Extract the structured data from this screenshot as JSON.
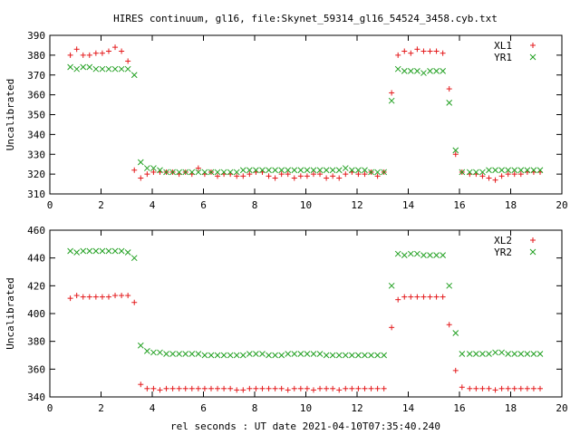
{
  "title": "HIRES continuum, gl16, file:Skynet_59314_gl16_54524_3458.cyb.txt",
  "colors": {
    "XL": "#e41a1c",
    "YR": "#22a022"
  },
  "chart_data": [
    {
      "type": "scatter",
      "ylabel": "Uncalibrated",
      "xlabel": "",
      "xlim": [
        0,
        20
      ],
      "ylim": [
        310,
        390
      ],
      "xticks": [
        0,
        2,
        4,
        6,
        8,
        10,
        12,
        14,
        16,
        18,
        20
      ],
      "yticks": [
        310,
        320,
        330,
        340,
        350,
        360,
        370,
        380,
        390
      ],
      "grid": false,
      "legend": "top-right",
      "series": [
        {
          "name": "XL1",
          "marker": "plus",
          "x": [
            0.8,
            1.05,
            1.3,
            1.55,
            1.8,
            2.05,
            2.3,
            2.55,
            2.8,
            3.05,
            3.3,
            3.55,
            3.8,
            4.05,
            4.3,
            4.55,
            4.8,
            5.05,
            5.3,
            5.55,
            5.8,
            6.05,
            6.3,
            6.55,
            6.8,
            7.05,
            7.3,
            7.55,
            7.8,
            8.05,
            8.3,
            8.55,
            8.8,
            9.05,
            9.3,
            9.55,
            9.8,
            10.05,
            10.3,
            10.55,
            10.8,
            11.05,
            11.3,
            11.55,
            11.8,
            12.05,
            12.3,
            12.55,
            12.8,
            13.05,
            13.35,
            13.6,
            13.85,
            14.1,
            14.35,
            14.6,
            14.85,
            15.1,
            15.35,
            15.6,
            15.85,
            16.1,
            16.4,
            16.65,
            16.9,
            17.15,
            17.4,
            17.65,
            17.9,
            18.15,
            18.4,
            18.65,
            18.9,
            19.15
          ],
          "y": [
            380,
            383,
            380,
            380,
            381,
            381,
            382,
            384,
            382,
            377,
            322,
            318,
            320,
            321,
            321,
            321,
            321,
            320,
            321,
            320,
            323,
            320,
            321,
            319,
            320,
            320,
            319,
            319,
            320,
            321,
            321,
            319,
            318,
            320,
            320,
            318,
            319,
            319,
            320,
            320,
            318,
            319,
            318,
            320,
            321,
            320,
            320,
            321,
            319,
            321,
            361,
            380,
            382,
            381,
            383,
            382,
            382,
            382,
            381,
            363,
            330,
            321,
            320,
            320,
            319,
            318,
            317,
            319,
            320,
            320,
            320,
            321,
            321,
            321
          ]
        },
        {
          "name": "YR1",
          "marker": "cross",
          "x": [
            0.8,
            1.05,
            1.3,
            1.55,
            1.8,
            2.05,
            2.3,
            2.55,
            2.8,
            3.05,
            3.3,
            3.55,
            3.8,
            4.05,
            4.3,
            4.55,
            4.8,
            5.05,
            5.3,
            5.55,
            5.8,
            6.05,
            6.3,
            6.55,
            6.8,
            7.05,
            7.3,
            7.55,
            7.8,
            8.05,
            8.3,
            8.55,
            8.8,
            9.05,
            9.3,
            9.55,
            9.8,
            10.05,
            10.3,
            10.55,
            10.8,
            11.05,
            11.3,
            11.55,
            11.8,
            12.05,
            12.3,
            12.55,
            12.8,
            13.05,
            13.35,
            13.6,
            13.85,
            14.1,
            14.35,
            14.6,
            14.85,
            15.1,
            15.35,
            15.6,
            15.85,
            16.1,
            16.4,
            16.65,
            16.9,
            17.15,
            17.4,
            17.65,
            17.9,
            18.15,
            18.4,
            18.65,
            18.9,
            19.15
          ],
          "y": [
            374,
            373,
            374,
            374,
            373,
            373,
            373,
            373,
            373,
            373,
            370,
            326,
            323,
            323,
            322,
            321,
            321,
            321,
            321,
            321,
            321,
            321,
            321,
            321,
            321,
            321,
            321,
            322,
            322,
            322,
            322,
            322,
            322,
            322,
            322,
            322,
            322,
            322,
            322,
            322,
            322,
            322,
            322,
            323,
            322,
            322,
            322,
            321,
            321,
            321,
            357,
            373,
            372,
            372,
            372,
            371,
            372,
            372,
            372,
            356,
            332,
            321,
            321,
            321,
            321,
            322,
            322,
            322,
            322,
            322,
            322,
            322,
            322,
            322
          ]
        }
      ]
    },
    {
      "type": "scatter",
      "ylabel": "Uncalibrated",
      "xlabel": "rel seconds : UT date 2021-04-10T07:35:40.240",
      "xlim": [
        0,
        20
      ],
      "ylim": [
        340,
        460
      ],
      "xticks": [
        0,
        2,
        4,
        6,
        8,
        10,
        12,
        14,
        16,
        18,
        20
      ],
      "yticks": [
        340,
        360,
        380,
        400,
        420,
        440,
        460
      ],
      "grid": false,
      "legend": "top-right",
      "series": [
        {
          "name": "XL2",
          "marker": "plus",
          "x": [
            0.8,
            1.05,
            1.3,
            1.55,
            1.8,
            2.05,
            2.3,
            2.55,
            2.8,
            3.05,
            3.3,
            3.55,
            3.8,
            4.05,
            4.3,
            4.55,
            4.8,
            5.05,
            5.3,
            5.55,
            5.8,
            6.05,
            6.3,
            6.55,
            6.8,
            7.05,
            7.3,
            7.55,
            7.8,
            8.05,
            8.3,
            8.55,
            8.8,
            9.05,
            9.3,
            9.55,
            9.8,
            10.05,
            10.3,
            10.55,
            10.8,
            11.05,
            11.3,
            11.55,
            11.8,
            12.05,
            12.3,
            12.55,
            12.8,
            13.05,
            13.35,
            13.6,
            13.85,
            14.1,
            14.35,
            14.6,
            14.85,
            15.1,
            15.35,
            15.6,
            15.85,
            16.1,
            16.4,
            16.65,
            16.9,
            17.15,
            17.4,
            17.65,
            17.9,
            18.15,
            18.4,
            18.65,
            18.9,
            19.15
          ],
          "y": [
            411,
            413,
            412,
            412,
            412,
            412,
            412,
            413,
            413,
            413,
            408,
            349,
            346,
            346,
            345,
            346,
            346,
            346,
            346,
            346,
            346,
            346,
            346,
            346,
            346,
            346,
            345,
            345,
            346,
            346,
            346,
            346,
            346,
            346,
            345,
            346,
            346,
            346,
            345,
            346,
            346,
            346,
            345,
            346,
            346,
            346,
            346,
            346,
            346,
            346,
            390,
            410,
            412,
            412,
            412,
            412,
            412,
            412,
            412,
            392,
            359,
            347,
            346,
            346,
            346,
            346,
            345,
            346,
            346,
            346,
            346,
            346,
            346,
            346
          ]
        },
        {
          "name": "YR2",
          "marker": "cross",
          "x": [
            0.8,
            1.05,
            1.3,
            1.55,
            1.8,
            2.05,
            2.3,
            2.55,
            2.8,
            3.05,
            3.3,
            3.55,
            3.8,
            4.05,
            4.3,
            4.55,
            4.8,
            5.05,
            5.3,
            5.55,
            5.8,
            6.05,
            6.3,
            6.55,
            6.8,
            7.05,
            7.3,
            7.55,
            7.8,
            8.05,
            8.3,
            8.55,
            8.8,
            9.05,
            9.3,
            9.55,
            9.8,
            10.05,
            10.3,
            10.55,
            10.8,
            11.05,
            11.3,
            11.55,
            11.8,
            12.05,
            12.3,
            12.55,
            12.8,
            13.05,
            13.35,
            13.6,
            13.85,
            14.1,
            14.35,
            14.6,
            14.85,
            15.1,
            15.35,
            15.6,
            15.85,
            16.1,
            16.4,
            16.65,
            16.9,
            17.15,
            17.4,
            17.65,
            17.9,
            18.15,
            18.4,
            18.65,
            18.9,
            19.15
          ],
          "y": [
            445,
            444,
            445,
            445,
            445,
            445,
            445,
            445,
            445,
            444,
            440,
            377,
            373,
            372,
            372,
            371,
            371,
            371,
            371,
            371,
            371,
            370,
            370,
            370,
            370,
            370,
            370,
            370,
            371,
            371,
            371,
            370,
            370,
            370,
            371,
            371,
            371,
            371,
            371,
            371,
            370,
            370,
            370,
            370,
            370,
            370,
            370,
            370,
            370,
            370,
            420,
            443,
            442,
            443,
            443,
            442,
            442,
            442,
            442,
            420,
            386,
            371,
            371,
            371,
            371,
            371,
            372,
            372,
            371,
            371,
            371,
            371,
            371,
            371
          ]
        }
      ]
    }
  ]
}
